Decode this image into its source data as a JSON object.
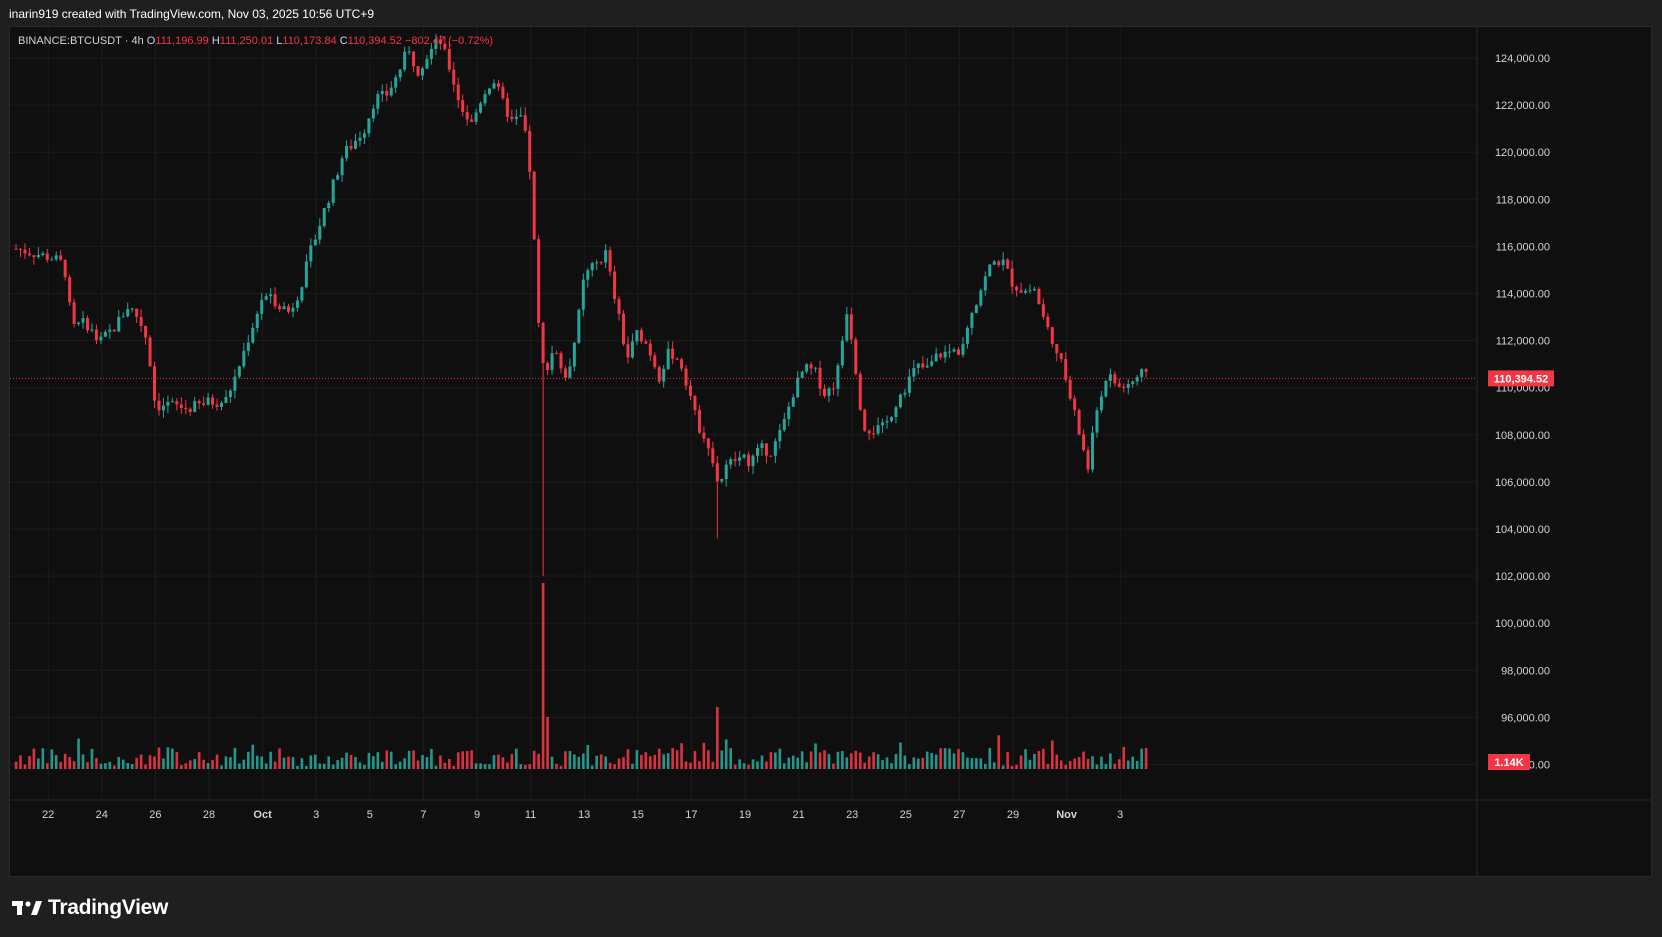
{
  "header": {
    "attribution": "inarin919 created with TradingView.com, Nov 03, 2025 10:56 UTC+9"
  },
  "legend": {
    "symbol": "BINANCE:BTCUSDT · 4h",
    "open_label": "O",
    "open": "111,196.99",
    "high_label": "H",
    "high": "111,250.01",
    "low_label": "L",
    "low": "110,173.84",
    "close_label": "C",
    "close": "110,394.52",
    "change": "−802.47 (−0.72%)"
  },
  "footer": {
    "brand": "TradingView",
    "logo_icon": "tradingview-logo-icon"
  },
  "colors": {
    "up": "#26a69a",
    "down": "#f23645",
    "background": "#0f0f0f",
    "grid": "#1c1c1c",
    "axis_text": "#d1d4dc",
    "price_line": "#f23645"
  },
  "chart_data": {
    "type": "candlestick",
    "interval": "4h",
    "ylim": [
      94800,
      125400
    ],
    "grid": true,
    "price_axis_ticks": [
      "124,000.00",
      "122,000.00",
      "120,000.00",
      "118,000.00",
      "116,000.00",
      "114,000.00",
      "112,000.00",
      "110,000.00",
      "108,000.00",
      "106,000.00",
      "104,000.00",
      "102,000.00",
      "100,000.00",
      "98,000.00",
      "96,000.00",
      "94,000.00"
    ],
    "price_axis_values": [
      124000,
      122000,
      120000,
      118000,
      116000,
      114000,
      112000,
      110000,
      108000,
      106000,
      104000,
      102000,
      100000,
      98000,
      96000,
      94000
    ],
    "time_axis_labels": [
      "22",
      "24",
      "26",
      "28",
      "Oct",
      "3",
      "5",
      "7",
      "9",
      "11",
      "13",
      "15",
      "17",
      "19",
      "21",
      "23",
      "25",
      "27",
      "29",
      "Nov",
      "3"
    ],
    "time_axis_days": [
      22,
      24,
      26,
      28,
      30,
      32,
      34,
      36,
      38,
      40,
      42,
      44,
      46,
      48,
      50,
      52,
      54,
      56,
      58,
      60,
      62
    ],
    "start_day": 20.8,
    "last_price": 110394.52,
    "last_price_label": "110,394.52",
    "volume_label": "1.14K",
    "series": [
      {
        "name": "price",
        "anchors": [
          [
            20.8,
            115900
          ],
          [
            21.5,
            115700
          ],
          [
            22.2,
            115500
          ],
          [
            22.6,
            115200
          ],
          [
            22.9,
            112500
          ],
          [
            23.4,
            112800
          ],
          [
            23.9,
            111900
          ],
          [
            24.5,
            112600
          ],
          [
            25.0,
            113500
          ],
          [
            25.4,
            112900
          ],
          [
            25.7,
            112000
          ],
          [
            26.0,
            109200
          ],
          [
            26.5,
            109300
          ],
          [
            27.2,
            109100
          ],
          [
            28.0,
            109400
          ],
          [
            28.6,
            109400
          ],
          [
            29.0,
            110500
          ],
          [
            29.5,
            112200
          ],
          [
            30.0,
            113900
          ],
          [
            30.6,
            113600
          ],
          [
            31.0,
            113200
          ],
          [
            31.4,
            114200
          ],
          [
            31.8,
            115800
          ],
          [
            32.2,
            117200
          ],
          [
            32.6,
            118500
          ],
          [
            33.0,
            119900
          ],
          [
            33.4,
            120400
          ],
          [
            33.8,
            121000
          ],
          [
            34.2,
            122300
          ],
          [
            34.6,
            122400
          ],
          [
            35.0,
            123200
          ],
          [
            35.4,
            124300
          ],
          [
            35.8,
            123500
          ],
          [
            36.2,
            124200
          ],
          [
            36.6,
            124800
          ],
          [
            37.0,
            123500
          ],
          [
            37.4,
            121900
          ],
          [
            37.8,
            121200
          ],
          [
            38.2,
            122400
          ],
          [
            38.6,
            123100
          ],
          [
            39.0,
            122000
          ],
          [
            39.3,
            121300
          ],
          [
            39.7,
            121500
          ],
          [
            40.0,
            119000
          ],
          [
            40.3,
            112600
          ],
          [
            40.5,
            110600
          ],
          [
            40.9,
            111800
          ],
          [
            41.3,
            110200
          ],
          [
            41.7,
            112300
          ],
          [
            42.0,
            114700
          ],
          [
            42.4,
            115200
          ],
          [
            42.8,
            115700
          ],
          [
            43.2,
            113500
          ],
          [
            43.6,
            111200
          ],
          [
            44.0,
            112400
          ],
          [
            44.4,
            111700
          ],
          [
            44.8,
            110500
          ],
          [
            45.2,
            111600
          ],
          [
            45.6,
            111000
          ],
          [
            45.9,
            110000
          ],
          [
            46.2,
            108500
          ],
          [
            46.6,
            107800
          ],
          [
            47.0,
            105900
          ],
          [
            47.4,
            106800
          ],
          [
            47.8,
            107000
          ],
          [
            48.2,
            106900
          ],
          [
            48.6,
            107400
          ],
          [
            49.0,
            107300
          ],
          [
            49.4,
            108300
          ],
          [
            49.8,
            109800
          ],
          [
            50.2,
            110800
          ],
          [
            50.6,
            110700
          ],
          [
            51.0,
            109700
          ],
          [
            51.4,
            110300
          ],
          [
            51.8,
            113300
          ],
          [
            52.0,
            112000
          ],
          [
            52.4,
            108400
          ],
          [
            52.8,
            108200
          ],
          [
            53.2,
            108300
          ],
          [
            53.6,
            109300
          ],
          [
            54.0,
            110100
          ],
          [
            54.4,
            110900
          ],
          [
            54.8,
            110800
          ],
          [
            55.2,
            111400
          ],
          [
            55.6,
            111500
          ],
          [
            56.0,
            111600
          ],
          [
            56.4,
            113100
          ],
          [
            56.8,
            114200
          ],
          [
            57.2,
            115300
          ],
          [
            57.6,
            115400
          ],
          [
            58.0,
            114400
          ],
          [
            58.4,
            114100
          ],
          [
            58.8,
            114200
          ],
          [
            59.2,
            112700
          ],
          [
            59.6,
            111800
          ],
          [
            60.0,
            110200
          ],
          [
            60.4,
            108400
          ],
          [
            60.8,
            106600
          ],
          [
            61.2,
            109600
          ],
          [
            61.6,
            110400
          ],
          [
            62.0,
            110000
          ],
          [
            62.4,
            110200
          ],
          [
            62.8,
            110600
          ],
          [
            63.0,
            110400
          ]
        ]
      }
    ]
  }
}
